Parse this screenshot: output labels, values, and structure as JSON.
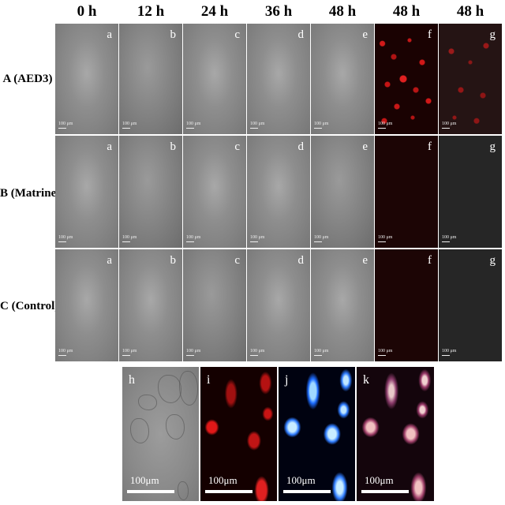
{
  "column_headers": [
    "0 h",
    "12 h",
    "24 h",
    "36 h",
    "48 h",
    "48 h",
    "48 h"
  ],
  "rows": [
    {
      "label": "A (AED3)",
      "letters": [
        "a",
        "b",
        "c",
        "d",
        "e",
        "f",
        "g"
      ],
      "scale_label": "100 μm"
    },
    {
      "label": "B (Matrine)",
      "letters": [
        "a",
        "b",
        "c",
        "d",
        "e",
        "f",
        "g"
      ],
      "scale_label": "100 μm"
    },
    {
      "label": "C (Control)",
      "letters": [
        "a",
        "b",
        "c",
        "d",
        "e",
        "f",
        "g"
      ],
      "scale_label": "100 μm"
    }
  ],
  "bottom_panels": [
    {
      "letter": "h",
      "scale_label": "100μm"
    },
    {
      "letter": "i",
      "scale_label": "100μm"
    },
    {
      "letter": "j",
      "scale_label": "100μm"
    },
    {
      "letter": "k",
      "scale_label": "100μm"
    }
  ]
}
